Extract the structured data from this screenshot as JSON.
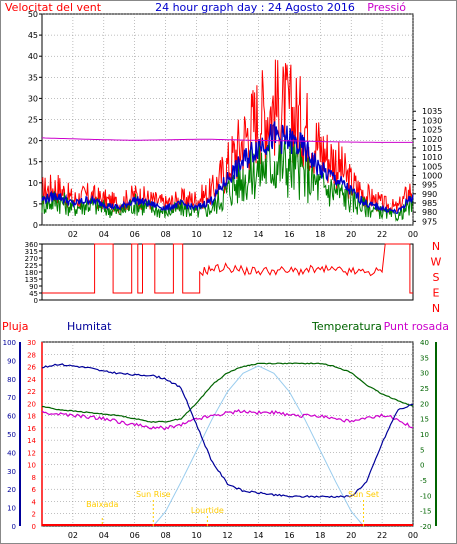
{
  "header": {
    "left_title": "Velocitat del vent",
    "center_title": "24 hour graph day : 24 Agosto 2016",
    "right_title": "Pressió"
  },
  "time_ticks": [
    "02",
    "04",
    "06",
    "08",
    "10",
    "12",
    "14",
    "16",
    "18",
    "20",
    "22",
    "00"
  ],
  "colors": {
    "wind_speed": "#ff0000",
    "wind_gust_avg": "#0000c8",
    "wind_green": "#008000",
    "pressure": "#cc00cc",
    "humidity": "#00009a",
    "temperature": "#006400",
    "dewpoint": "#cc00cc",
    "solar": "#99ccee",
    "rain": "#ff0000",
    "annotation": "#ffcc00",
    "grid": "#808080"
  },
  "chart_data": [
    {
      "type": "line",
      "panel": "wind-pressure",
      "x_unit": "hour",
      "x": [
        0,
        1,
        2,
        3,
        4,
        5,
        6,
        7,
        8,
        9,
        10,
        11,
        12,
        13,
        14,
        15,
        16,
        17,
        18,
        19,
        20,
        21,
        22,
        23,
        24
      ],
      "ylim_left": [
        0,
        50
      ],
      "yticks_left": [
        0,
        5,
        10,
        15,
        20,
        25,
        30,
        35,
        40,
        45,
        50
      ],
      "ylim_right": [
        973,
        1088
      ],
      "yticks_right": [
        975,
        980,
        985,
        990,
        995,
        1000,
        1005,
        1010,
        1015,
        1020,
        1025,
        1030,
        1035
      ],
      "series": [
        {
          "key": "gust",
          "values": [
            8,
            9,
            6,
            7,
            6,
            5,
            7,
            6,
            5,
            6,
            6,
            8,
            14,
            20,
            26,
            28,
            27,
            24,
            18,
            15,
            10,
            7,
            5,
            4,
            9
          ]
        },
        {
          "key": "speed",
          "values": [
            6,
            7,
            5,
            6,
            5,
            4,
            6,
            5,
            4,
            5,
            4,
            6,
            11,
            15,
            19,
            21,
            20,
            18,
            13,
            11,
            8,
            5,
            4,
            3,
            7
          ]
        },
        {
          "key": "green",
          "values": [
            5,
            6,
            4,
            5,
            4,
            3,
            5,
            4,
            3,
            4,
            3,
            4,
            8,
            11,
            13,
            15,
            14,
            12,
            9,
            8,
            6,
            4,
            3,
            2,
            5
          ]
        },
        {
          "key": "pressure",
          "values": [
            1020.5,
            1020.2,
            1020.0,
            1019.7,
            1019.5,
            1019.3,
            1019.2,
            1019.3,
            1019.4,
            1019.6,
            1019.7,
            1019.7,
            1019.5,
            1019.3,
            1019.1,
            1019.0,
            1018.9,
            1018.7,
            1018.5,
            1018.3,
            1018.2,
            1018.1,
            1018.0,
            1018.0,
            1018.0
          ]
        }
      ]
    },
    {
      "type": "line",
      "panel": "wind-direction",
      "x_unit": "hour",
      "ylim": [
        0,
        360
      ],
      "yticks": [
        0,
        45,
        90,
        135,
        180,
        225,
        270,
        315,
        360
      ],
      "ytick_labels": [
        "0",
        "45",
        "90",
        "135",
        "180",
        "225",
        "270",
        "315",
        "360"
      ],
      "right_labels": [
        "N",
        "W",
        "S",
        "E",
        "N"
      ],
      "steps": [
        [
          0,
          45
        ],
        [
          3.4,
          45
        ],
        [
          3.4,
          360
        ],
        [
          4.6,
          360
        ],
        [
          4.6,
          45
        ],
        [
          5.8,
          45
        ],
        [
          5.8,
          360
        ],
        [
          6.2,
          360
        ],
        [
          6.2,
          45
        ],
        [
          6.5,
          45
        ],
        [
          6.5,
          360
        ],
        [
          7.3,
          360
        ],
        [
          7.3,
          45
        ],
        [
          8.5,
          45
        ],
        [
          8.5,
          360
        ],
        [
          9.1,
          360
        ],
        [
          9.1,
          45
        ],
        [
          10.2,
          45
        ],
        [
          10.2,
          180
        ],
        [
          11,
          200
        ],
        [
          12,
          210
        ],
        [
          13,
          190
        ],
        [
          14,
          185
        ],
        [
          15,
          190
        ],
        [
          16,
          185
        ],
        [
          17,
          190
        ],
        [
          18,
          195
        ],
        [
          19,
          190
        ],
        [
          20,
          180
        ],
        [
          21,
          180
        ],
        [
          22,
          180
        ],
        [
          22.2,
          360
        ],
        [
          23.8,
          360
        ],
        [
          23.8,
          45
        ],
        [
          24,
          45
        ]
      ]
    },
    {
      "type": "line",
      "panel": "humidity-temperature",
      "x_unit": "hour",
      "ylim_humidity": [
        0,
        100
      ],
      "yticks_humidity": [
        0,
        10,
        20,
        30,
        40,
        50,
        60,
        70,
        80,
        90,
        100
      ],
      "ylim_rain": [
        0,
        30
      ],
      "yticks_rain": [
        0,
        2,
        4,
        6,
        8,
        10,
        12,
        14,
        16,
        18,
        20,
        22,
        24,
        26,
        28,
        30
      ],
      "ylim_temp": [
        -20,
        40
      ],
      "yticks_temp": [
        -20,
        -15,
        -10,
        -5,
        0,
        5,
        10,
        15,
        20,
        25,
        30,
        35,
        40
      ],
      "labels": {
        "rain": "Pluja",
        "humidity": "Humitat",
        "temperature": "Temperatura",
        "dewpoint": "Punt rosada"
      },
      "annotations": [
        "Baixada",
        "Sun Rise",
        "Lourtide",
        "Sun Set"
      ],
      "series": [
        {
          "key": "humidity",
          "x": [
            0,
            1,
            2,
            3,
            4,
            5,
            6,
            7,
            8,
            9,
            10,
            11,
            12,
            13,
            14,
            15,
            16,
            17,
            18,
            19,
            20,
            21,
            22,
            23,
            24
          ],
          "values": [
            86,
            88,
            87,
            86,
            84,
            83,
            82,
            82,
            80,
            75,
            55,
            35,
            23,
            19,
            18,
            17,
            16,
            16,
            16,
            16,
            16,
            24,
            45,
            63,
            66
          ]
        },
        {
          "key": "temperature",
          "x": [
            0,
            1,
            2,
            3,
            4,
            5,
            6,
            7,
            8,
            9,
            10,
            11,
            12,
            13,
            14,
            15,
            16,
            17,
            18,
            19,
            20,
            21,
            22,
            23,
            24
          ],
          "values": [
            19,
            18,
            17.5,
            17,
            16.5,
            16,
            15,
            14,
            14,
            15,
            20,
            26,
            30,
            32,
            33,
            33,
            33,
            33,
            33,
            32,
            30,
            26,
            23,
            21,
            19
          ]
        },
        {
          "key": "dewpoint",
          "x": [
            0,
            1,
            2,
            3,
            4,
            5,
            6,
            7,
            8,
            9,
            10,
            11,
            12,
            13,
            14,
            15,
            16,
            17,
            18,
            19,
            20,
            21,
            22,
            23,
            24
          ],
          "values": [
            17,
            16.5,
            16,
            15.5,
            15,
            14,
            13,
            12,
            12,
            13,
            15,
            16,
            17,
            17.5,
            17,
            17,
            16,
            16,
            16,
            15,
            14,
            15,
            16,
            15,
            12
          ]
        },
        {
          "key": "solar",
          "x": [
            7.2,
            8,
            9,
            10,
            11,
            12,
            13,
            14,
            15,
            16,
            17,
            18,
            19,
            20,
            20.8
          ],
          "values": [
            0,
            8,
            24,
            41,
            58,
            73,
            83,
            87,
            83,
            73,
            58,
            41,
            24,
            8,
            0
          ]
        }
      ]
    }
  ]
}
